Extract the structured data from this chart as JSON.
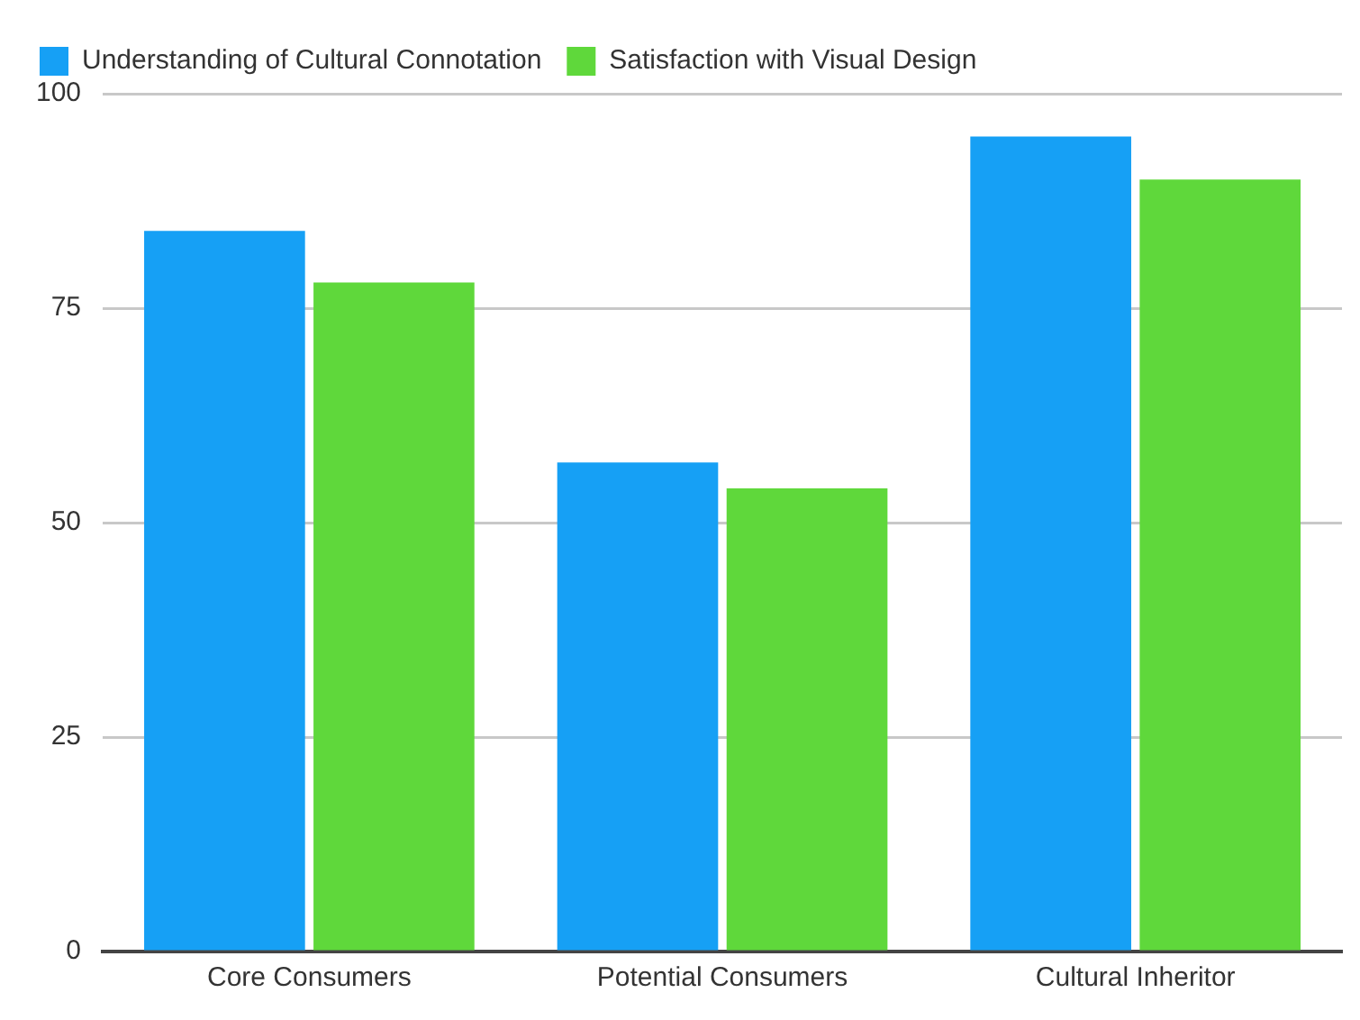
{
  "chart_data": {
    "type": "bar",
    "categories": [
      "Core Consumers",
      "Potential Consumers",
      "Cultural Inheritor"
    ],
    "series": [
      {
        "name": "Understanding of Cultural Connotation",
        "color": "#16a0f5",
        "values": [
          84,
          57,
          95
        ]
      },
      {
        "name": "Satisfaction with Visual Design",
        "color": "#5fd83b",
        "values": [
          78,
          54,
          90
        ]
      }
    ],
    "ylim": [
      0,
      100
    ],
    "yticks": [
      0,
      25,
      50,
      75,
      100
    ],
    "grid": "y",
    "legend": "top"
  }
}
